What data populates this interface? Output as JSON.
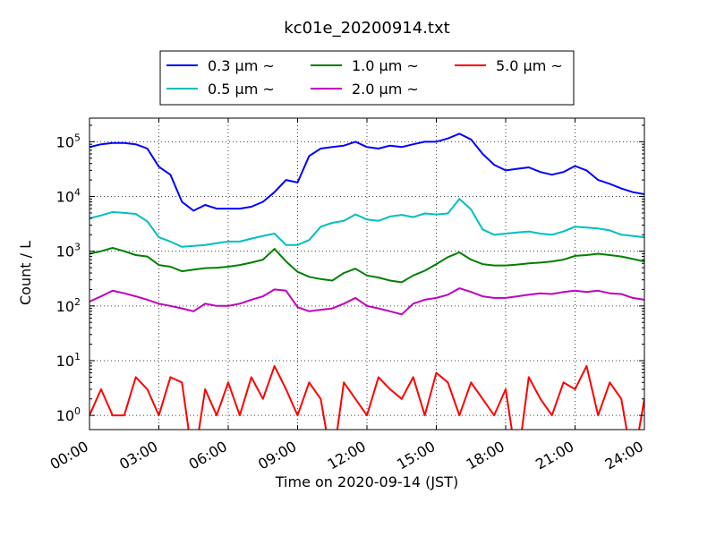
{
  "chart_data": {
    "type": "line",
    "title": "kc01e_20200914.txt",
    "xlabel": "Time on 2020-09-14 (JST)",
    "ylabel": "Count / L",
    "xlim": [
      "00:00",
      "24:00"
    ],
    "xticks": [
      "00:00",
      "03:00",
      "06:00",
      "09:00",
      "12:00",
      "15:00",
      "18:00",
      "21:00",
      "24:00"
    ],
    "yscale": "log",
    "ylim": [
      0.55,
      270000
    ],
    "yticks": [
      1,
      10,
      100,
      1000,
      10000,
      100000
    ],
    "ytick_labels": [
      {
        "base": "10",
        "exp": "0"
      },
      {
        "base": "10",
        "exp": "1"
      },
      {
        "base": "10",
        "exp": "2"
      },
      {
        "base": "10",
        "exp": "3"
      },
      {
        "base": "10",
        "exp": "4"
      },
      {
        "base": "10",
        "exp": "5"
      }
    ],
    "grid": true,
    "legend_position": "top-center",
    "series": [
      {
        "name": "0.3 μm ~",
        "color": "#0000ff",
        "x": [
          0,
          0.5,
          1,
          1.5,
          2,
          2.5,
          3,
          3.5,
          4,
          4.5,
          5,
          5.5,
          6,
          6.5,
          7,
          7.5,
          8,
          8.5,
          9,
          9.5,
          10,
          10.5,
          11,
          11.5,
          12,
          12.5,
          13,
          13.5,
          14,
          14.5,
          15,
          15.5,
          16,
          16.5,
          17,
          17.5,
          18,
          18.5,
          19,
          19.5,
          20,
          20.5,
          21,
          21.5,
          22,
          22.5,
          23,
          23.5,
          24
        ],
        "values": [
          80000,
          90000,
          95000,
          95000,
          90000,
          75000,
          35000,
          25000,
          8000,
          5500,
          7000,
          6000,
          6000,
          6000,
          6500,
          8000,
          12000,
          20000,
          18000,
          55000,
          75000,
          80000,
          85000,
          100000,
          80000,
          75000,
          85000,
          80000,
          90000,
          100000,
          100000,
          115000,
          140000,
          110000,
          60000,
          38000,
          30000,
          32000,
          34000,
          28000,
          25000,
          28000,
          36000,
          30000,
          20000,
          17000,
          14000,
          12000,
          11000
        ]
      },
      {
        "name": "0.5 μm ~",
        "color": "#00bfbf",
        "x": [
          0,
          0.5,
          1,
          1.5,
          2,
          2.5,
          3,
          3.5,
          4,
          4.5,
          5,
          5.5,
          6,
          6.5,
          7,
          7.5,
          8,
          8.5,
          9,
          9.5,
          10,
          10.5,
          11,
          11.5,
          12,
          12.5,
          13,
          13.5,
          14,
          14.5,
          15,
          15.5,
          16,
          16.5,
          17,
          17.5,
          18,
          18.5,
          19,
          19.5,
          20,
          20.5,
          21,
          21.5,
          22,
          22.5,
          23,
          23.5,
          24
        ],
        "values": [
          4000,
          4500,
          5200,
          5000,
          4800,
          3500,
          1800,
          1500,
          1200,
          1250,
          1300,
          1400,
          1500,
          1500,
          1700,
          1900,
          2100,
          1300,
          1300,
          1600,
          2800,
          3300,
          3600,
          4700,
          3800,
          3600,
          4300,
          4600,
          4200,
          4900,
          4700,
          4900,
          9000,
          5800,
          2500,
          2000,
          2100,
          2200,
          2300,
          2100,
          2000,
          2300,
          2800,
          2700,
          2600,
          2400,
          2000,
          1900,
          1800
        ]
      },
      {
        "name": "1.0 μm ~",
        "color": "#008000",
        "x": [
          0,
          0.5,
          1,
          1.5,
          2,
          2.5,
          3,
          3.5,
          4,
          4.5,
          5,
          5.5,
          6,
          6.5,
          7,
          7.5,
          8,
          8.5,
          9,
          9.5,
          10,
          10.5,
          11,
          11.5,
          12,
          12.5,
          13,
          13.5,
          14,
          14.5,
          15,
          15.5,
          16,
          16.5,
          17,
          17.5,
          18,
          18.5,
          19,
          19.5,
          20,
          20.5,
          21,
          21.5,
          22,
          22.5,
          23,
          23.5,
          24
        ],
        "values": [
          900,
          1000,
          1150,
          1000,
          850,
          800,
          560,
          520,
          430,
          460,
          490,
          500,
          520,
          560,
          620,
          700,
          1100,
          650,
          420,
          340,
          310,
          290,
          400,
          480,
          360,
          330,
          290,
          270,
          360,
          440,
          580,
          780,
          950,
          700,
          580,
          550,
          550,
          570,
          600,
          620,
          650,
          700,
          820,
          850,
          900,
          850,
          800,
          720,
          650
        ]
      },
      {
        "name": "2.0 μm ~",
        "color": "#bf00bf",
        "x": [
          0,
          0.5,
          1,
          1.5,
          2,
          2.5,
          3,
          3.5,
          4,
          4.5,
          5,
          5.5,
          6,
          6.5,
          7,
          7.5,
          8,
          8.5,
          9,
          9.5,
          10,
          10.5,
          11,
          11.5,
          12,
          12.5,
          13,
          13.5,
          14,
          14.5,
          15,
          15.5,
          16,
          16.5,
          17,
          17.5,
          18,
          18.5,
          19,
          19.5,
          20,
          20.5,
          21,
          21.5,
          22,
          22.5,
          23,
          23.5,
          24
        ],
        "values": [
          120,
          150,
          190,
          170,
          150,
          130,
          110,
          100,
          90,
          80,
          110,
          100,
          100,
          110,
          130,
          150,
          200,
          190,
          95,
          80,
          85,
          90,
          110,
          140,
          100,
          90,
          80,
          70,
          110,
          130,
          140,
          160,
          210,
          180,
          150,
          140,
          140,
          150,
          160,
          170,
          165,
          180,
          190,
          180,
          190,
          170,
          165,
          140,
          130
        ]
      },
      {
        "name": "5.0 μm ~",
        "color": "#ff0000",
        "x": [
          0,
          0.5,
          1,
          1.5,
          2,
          2.5,
          3,
          3.5,
          4,
          4.5,
          5,
          5.5,
          6,
          6.5,
          7,
          7.5,
          8,
          8.5,
          9,
          9.5,
          10,
          10.5,
          11,
          11.5,
          12,
          12.5,
          13,
          13.5,
          14,
          14.5,
          15,
          15.5,
          16,
          16.5,
          17,
          17.5,
          18,
          18.5,
          19,
          19.5,
          20,
          20.5,
          21,
          21.5,
          22,
          22.5,
          23,
          23.5,
          24
        ],
        "values": [
          1,
          3,
          1,
          1,
          5,
          3,
          1,
          5,
          4,
          0,
          3,
          1,
          4,
          1,
          5,
          2,
          8,
          3,
          1,
          4,
          2,
          0,
          4,
          2,
          1,
          5,
          3,
          2,
          5,
          1,
          6,
          4,
          1,
          4,
          2,
          1,
          3,
          0,
          5,
          2,
          1,
          4,
          3,
          8,
          1,
          4,
          2,
          0,
          2
        ]
      }
    ]
  }
}
